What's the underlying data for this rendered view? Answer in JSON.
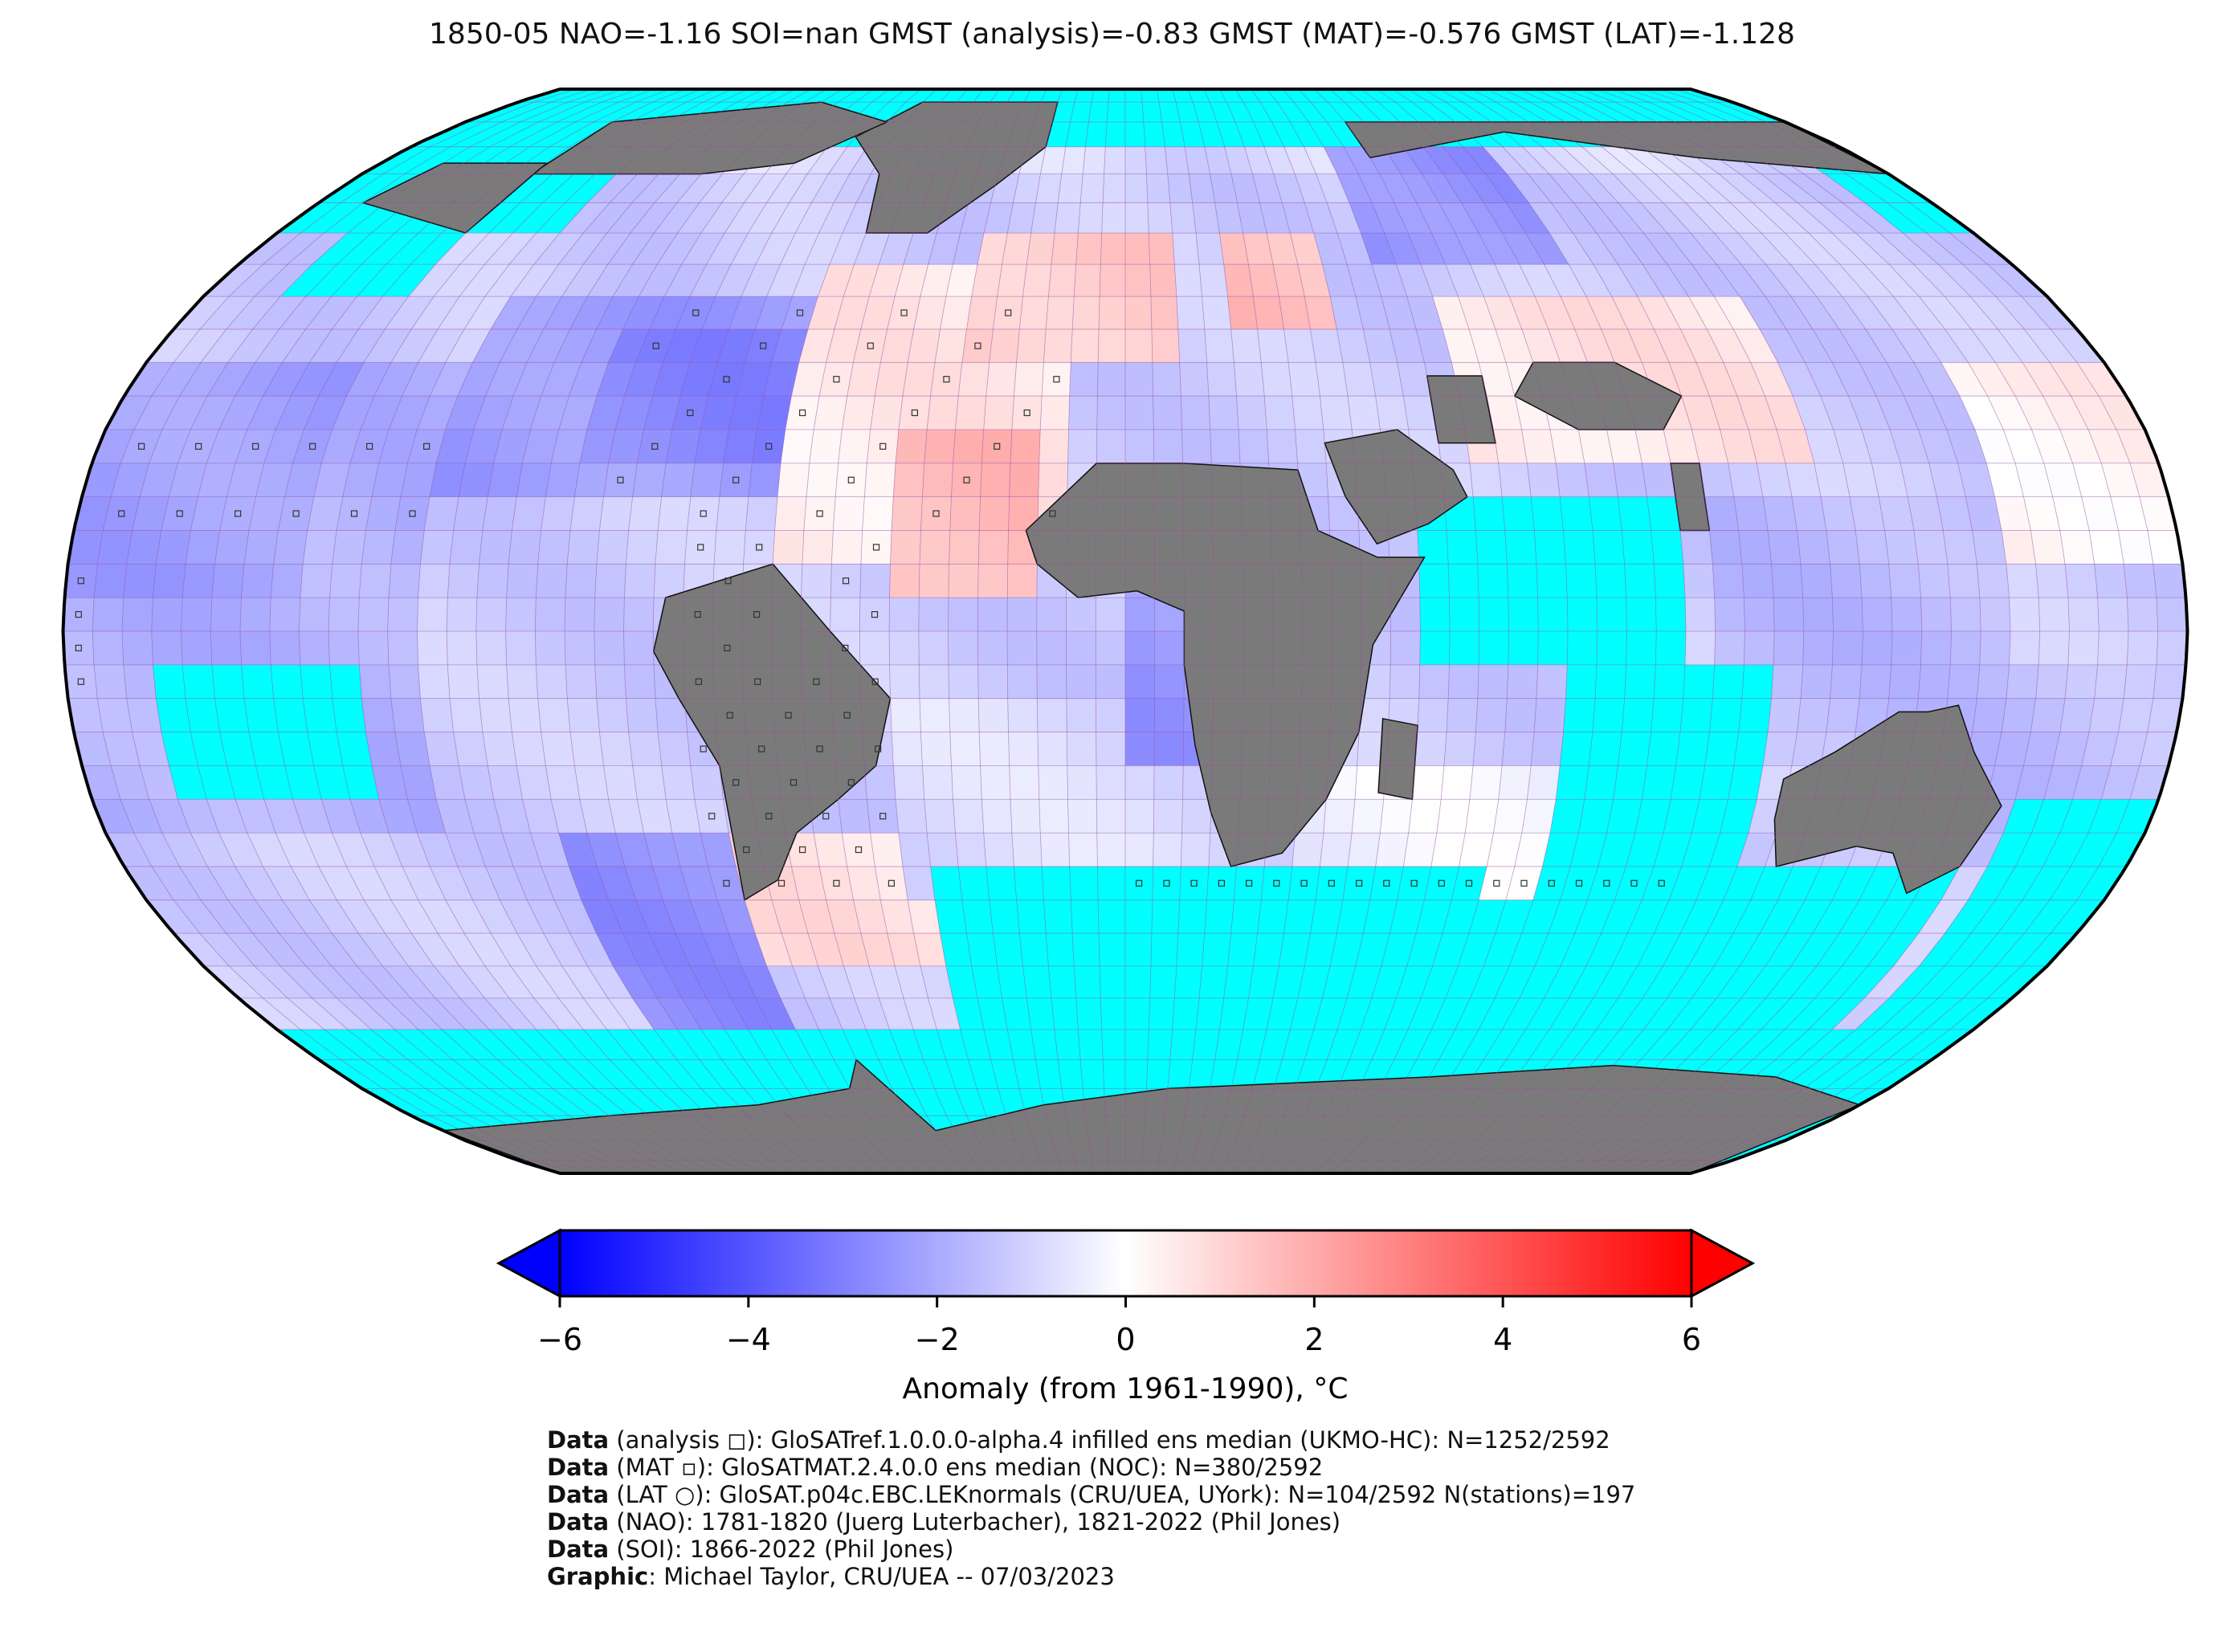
{
  "title": "1850-05 NAO=-1.16 SOI=nan GMST (analysis)=-0.83 GMST (MAT)=-0.576 GMST (LAT)=-1.128",
  "colors": {
    "ocean_mask": "#00ffff",
    "land_missing": "#7a7a7a",
    "cold": "#0000ff",
    "neutral": "#ffffff",
    "warm": "#ff0000",
    "grid_line": "#a04aa0",
    "coast": "#111111"
  },
  "colorbar": {
    "min": -6,
    "max": 6,
    "ticks": [
      "−6",
      "−4",
      "−2",
      "0",
      "2",
      "4",
      "6"
    ],
    "label": "Anomaly (from 1961-1990), °C"
  },
  "credits": [
    {
      "bold": "Data",
      "text": " (analysis ◻): GloSATref.1.0.0.0-alpha.4 infilled ens median (UKMO-HC): N=1252/2592"
    },
    {
      "bold": "Data",
      "text": " (MAT ▫): GloSATMAT.2.4.0.0 ens median (NOC): N=380/2592"
    },
    {
      "bold": "Data",
      "text": " (LAT ○): GloSAT.p04c.EBC.LEKnormals (CRU/UEA, UYork): N=104/2592 N(stations)=197"
    },
    {
      "bold": "Data",
      "text": " (NAO): 1781-1820 (Juerg Luterbacher), 1821-2022 (Phil Jones)"
    },
    {
      "bold": "Data",
      "text": " (SOI): 1866-2022 (Phil Jones)"
    },
    {
      "bold": "Graphic",
      "text": ": Michael Taylor, CRU/UEA -- 07/03/2023"
    }
  ]
}
